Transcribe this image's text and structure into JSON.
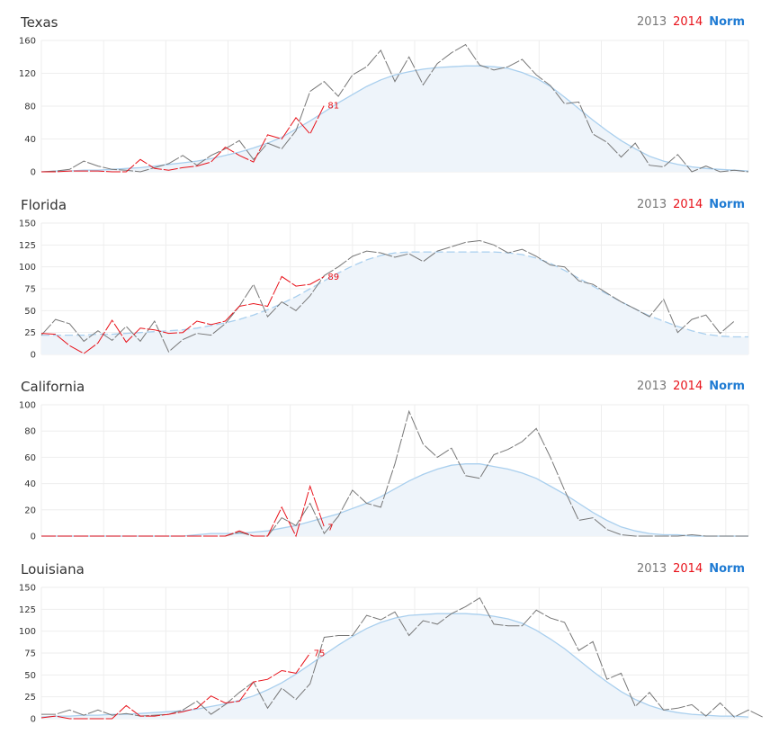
{
  "legend": {
    "y2013": "2013",
    "y2014": "2014",
    "norm": "Norm"
  },
  "colors": {
    "y2013": "#777777",
    "y2014": "#e8121a",
    "norm": "#a9cfee",
    "normFill": "#eef4fa",
    "grid": "#eeeeee",
    "legendNorm": "#1f7bd3"
  },
  "chart_data": [
    {
      "type": "line",
      "title": "Texas",
      "ylim": [
        0,
        160
      ],
      "yticks": [
        "0",
        "40",
        "80",
        "120",
        "160"
      ],
      "grid": true,
      "end_label": "81",
      "series": [
        {
          "name": "2013",
          "style": "dashed",
          "values": [
            0,
            1,
            3,
            13,
            7,
            3,
            2,
            0,
            5,
            10,
            20,
            8,
            20,
            28,
            38,
            15,
            35,
            28,
            50,
            98,
            110,
            92,
            118,
            128,
            148,
            110,
            140,
            106,
            132,
            145,
            155,
            130,
            124,
            128,
            137,
            118,
            105,
            83,
            85,
            46,
            36,
            18,
            35,
            8,
            6,
            21,
            0,
            7,
            0,
            2,
            0
          ]
        },
        {
          "name": "2014",
          "style": "dashed",
          "values": [
            0,
            0,
            1,
            1,
            1,
            0,
            0,
            15,
            4,
            2,
            5,
            7,
            12,
            30,
            20,
            12,
            45,
            40,
            66,
            46,
            81
          ]
        },
        {
          "name": "Norm",
          "values": [
            0,
            1,
            1,
            2,
            2,
            3,
            4,
            5,
            7,
            9,
            11,
            13,
            16,
            20,
            24,
            29,
            35,
            42,
            52,
            62,
            73,
            84,
            94,
            104,
            112,
            118,
            122,
            125,
            127,
            128,
            129,
            129,
            128,
            126,
            121,
            114,
            104,
            91,
            77,
            63,
            50,
            38,
            28,
            19,
            13,
            9,
            6,
            4,
            3,
            2,
            1
          ]
        }
      ]
    },
    {
      "type": "line",
      "title": "Florida",
      "ylim": [
        0,
        150
      ],
      "yticks": [
        "0",
        "25",
        "50",
        "75",
        "100",
        "125",
        "150"
      ],
      "grid": true,
      "end_label": "89",
      "series": [
        {
          "name": "2013",
          "style": "dashed",
          "values": [
            22,
            40,
            35,
            15,
            27,
            16,
            32,
            15,
            38,
            3,
            17,
            24,
            22,
            35,
            55,
            80,
            43,
            60,
            50,
            67,
            90,
            100,
            112,
            118,
            116,
            111,
            115,
            106,
            118,
            123,
            128,
            130,
            125,
            116,
            120,
            112,
            102,
            100,
            84,
            80,
            70,
            60,
            52,
            43,
            63,
            25,
            40,
            45,
            24,
            38
          ]
        },
        {
          "name": "2014",
          "style": "dashed",
          "values": [
            24,
            23,
            10,
            1,
            13,
            39,
            14,
            30,
            28,
            24,
            25,
            38,
            34,
            38,
            55,
            58,
            55,
            89,
            78,
            80,
            89
          ]
        },
        {
          "name": "Norm",
          "style": "dashed",
          "values": [
            22,
            22,
            22,
            22,
            23,
            23,
            24,
            25,
            26,
            27,
            28,
            30,
            33,
            36,
            40,
            45,
            51,
            58,
            66,
            75,
            84,
            93,
            101,
            108,
            113,
            116,
            117,
            117,
            117,
            117,
            117,
            117,
            117,
            116,
            114,
            110,
            104,
            96,
            87,
            78,
            69,
            60,
            52,
            44,
            38,
            32,
            27,
            23,
            21,
            20,
            20
          ]
        }
      ]
    },
    {
      "type": "line",
      "title": "California",
      "ylim": [
        0,
        100
      ],
      "yticks": [
        "0",
        "20",
        "40",
        "60",
        "80",
        "100"
      ],
      "grid": true,
      "end_label": "7",
      "series": [
        {
          "name": "2013",
          "style": "dashed",
          "values": [
            0,
            0,
            0,
            0,
            0,
            0,
            0,
            0,
            0,
            0,
            0,
            0,
            0,
            0,
            3,
            0,
            0,
            14,
            8,
            25,
            2,
            15,
            35,
            25,
            22,
            55,
            95,
            70,
            60,
            67,
            46,
            44,
            62,
            66,
            72,
            82,
            60,
            35,
            12,
            14,
            5,
            1,
            0,
            0,
            0,
            0,
            1,
            0,
            0,
            0,
            0
          ]
        },
        {
          "name": "2014",
          "style": "dashed",
          "values": [
            0,
            0,
            0,
            0,
            0,
            0,
            0,
            0,
            0,
            0,
            0,
            0,
            0,
            0,
            4,
            0,
            0,
            22,
            0,
            38,
            7
          ]
        },
        {
          "name": "Norm",
          "values": [
            0,
            0,
            0,
            0,
            0,
            0,
            0,
            0,
            0,
            0,
            0,
            1,
            2,
            2,
            2,
            3,
            4,
            6,
            8,
            11,
            14,
            17,
            21,
            25,
            30,
            36,
            42,
            47,
            51,
            54,
            55,
            55,
            53,
            51,
            48,
            44,
            38,
            32,
            25,
            18,
            12,
            7,
            4,
            2,
            1,
            1,
            0,
            0,
            0,
            0,
            0
          ]
        }
      ]
    },
    {
      "type": "line",
      "title": "Louisiana",
      "ylim": [
        0,
        150
      ],
      "yticks": [
        "0",
        "25",
        "50",
        "75",
        "100",
        "125",
        "150"
      ],
      "grid": true,
      "end_label": "75",
      "series": [
        {
          "name": "2013",
          "style": "dashed",
          "values": [
            5,
            5,
            10,
            4,
            10,
            4,
            6,
            3,
            4,
            5,
            10,
            20,
            5,
            16,
            30,
            42,
            12,
            35,
            22,
            40,
            93,
            95,
            95,
            118,
            113,
            122,
            95,
            112,
            108,
            120,
            128,
            138,
            108,
            106,
            106,
            124,
            115,
            110,
            78,
            88,
            45,
            52,
            14,
            30,
            10,
            12,
            16,
            3,
            18,
            2,
            10,
            2
          ]
        },
        {
          "name": "2014",
          "style": "dashed",
          "values": [
            1,
            3,
            0,
            0,
            0,
            0,
            15,
            3,
            3,
            5,
            8,
            12,
            26,
            18,
            20,
            42,
            45,
            55,
            52,
            75
          ]
        },
        {
          "name": "Norm",
          "values": [
            2,
            3,
            3,
            4,
            4,
            5,
            5,
            6,
            7,
            8,
            9,
            11,
            14,
            17,
            21,
            26,
            33,
            41,
            51,
            62,
            73,
            84,
            94,
            103,
            110,
            115,
            118,
            119,
            120,
            120,
            120,
            119,
            117,
            114,
            109,
            101,
            91,
            80,
            67,
            54,
            42,
            31,
            22,
            15,
            10,
            7,
            5,
            4,
            3,
            3,
            2
          ]
        }
      ]
    }
  ]
}
